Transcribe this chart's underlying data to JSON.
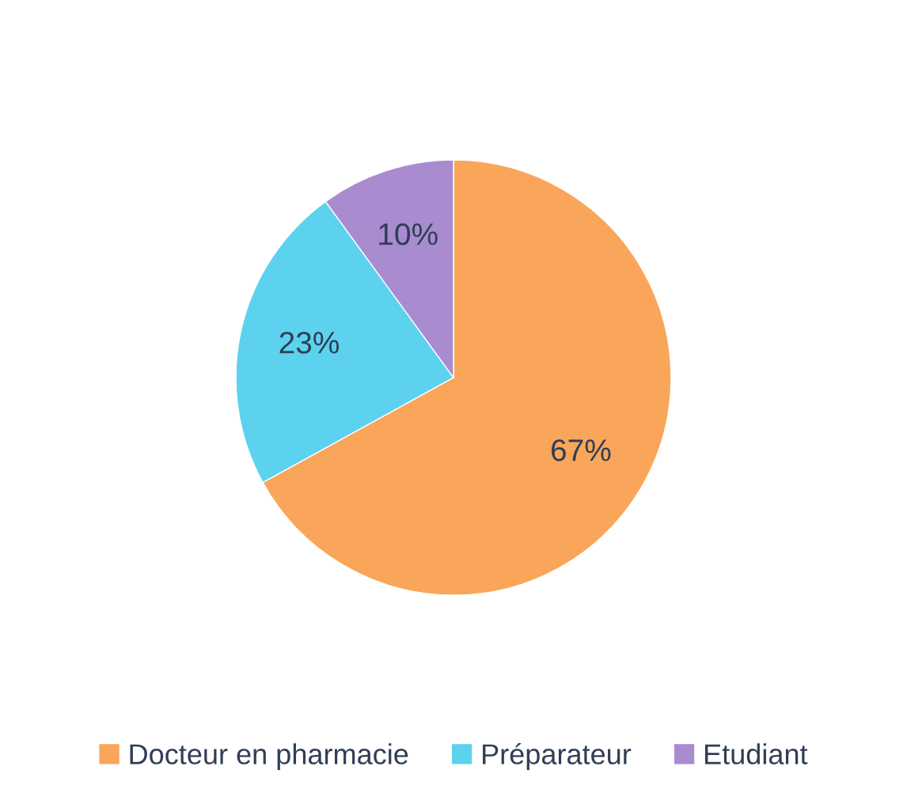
{
  "chart_data": {
    "type": "pie",
    "categories": [
      "Docteur en pharmacie",
      "Préparateur",
      "Etudiant"
    ],
    "values": [
      67,
      23,
      10
    ],
    "value_labels": [
      "67%",
      "23%",
      "10%"
    ],
    "colors": [
      "#f9a65a",
      "#5cd2ef",
      "#a98bd0"
    ],
    "legend": "bottom"
  }
}
